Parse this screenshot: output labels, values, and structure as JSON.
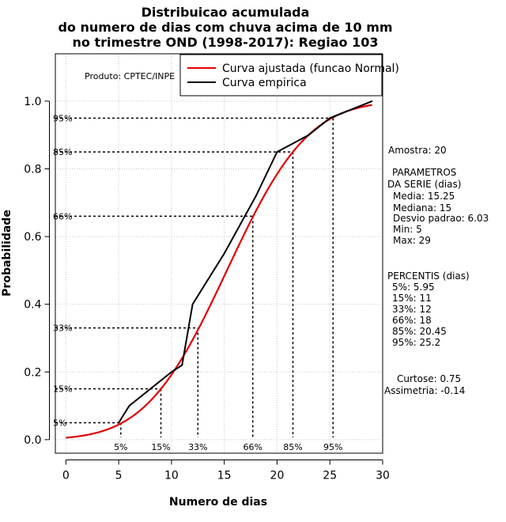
{
  "chart_data": {
    "type": "line",
    "title": [
      "Distribuicao acumulada",
      "do numero de dias com chuva acima de 10 mm",
      "no trimestre OND (1998-2017): Regiao 103"
    ],
    "xlabel": "Numero de dias",
    "ylabel": "Probabilidade",
    "xlim": [
      -1,
      30
    ],
    "ylim": [
      -0.04,
      1.14
    ],
    "xticks": [
      0,
      5,
      10,
      15,
      20,
      25,
      30
    ],
    "yticks": [
      0.0,
      0.2,
      0.4,
      0.6,
      0.8,
      1.0
    ],
    "ytick_labels": [
      "0.0",
      "0.2",
      "0.4",
      "0.6",
      "0.8",
      "1.0"
    ],
    "grid": true,
    "product_label": "Produto: CPTEC/INPE",
    "legend": [
      {
        "label": "Curva ajustada (funcao Normal)",
        "color": "#e00000"
      },
      {
        "label": "Curva empirica",
        "color": "#000000"
      }
    ],
    "normal": {
      "mean": 15.25,
      "sd": 6.03,
      "x_from": 0,
      "x_to": 29
    },
    "series": [
      {
        "name": "Curva empirica",
        "x": [
          5,
          6,
          10,
          11,
          12,
          15,
          18,
          20,
          23,
          25,
          29
        ],
        "y": [
          0.05,
          0.1,
          0.2,
          0.22,
          0.4,
          0.55,
          0.72,
          0.85,
          0.9,
          0.95,
          1.0
        ]
      }
    ],
    "percentiles": [
      {
        "label": "5%",
        "x": 5.95,
        "y": 0.05
      },
      {
        "label": "15%",
        "x": 11,
        "y": 0.15
      },
      {
        "label": "33%",
        "x": 12,
        "y": 0.33
      },
      {
        "label": "66%",
        "x": 18,
        "y": 0.66
      },
      {
        "label": "85%",
        "x": 20.45,
        "y": 0.85
      },
      {
        "label": "95%",
        "x": 25.2,
        "y": 0.95
      }
    ],
    "percentile_markers": [
      {
        "label": "5%",
        "x": 5.2,
        "y": 0.05
      },
      {
        "label": "15%",
        "x": 9.0,
        "y": 0.15
      },
      {
        "label": "33%",
        "x": 12.5,
        "y": 0.33
      },
      {
        "label": "66%",
        "x": 17.7,
        "y": 0.66
      },
      {
        "label": "85%",
        "x": 21.5,
        "y": 0.85
      },
      {
        "label": "95%",
        "x": 25.3,
        "y": 0.95
      }
    ]
  },
  "stats": {
    "amostra": "Amostra: 20",
    "param_title_1": "PARAMETROS",
    "param_title_2": "DA SERIE (dias)",
    "media": "Media: 15.25",
    "mediana": "Mediana: 15",
    "desvio": "Desvio padrao: 6.03",
    "min": "Min: 5",
    "max": "Max: 29",
    "perc_title": "PERCENTIS (dias)",
    "p5": "5%: 5.95",
    "p15": "15%: 11",
    "p33": "33%: 12",
    "p66": "66%: 18",
    "p85": "85%: 20.45",
    "p95": "95%: 25.2",
    "curtose": "Curtose: 0.75",
    "assimetria": "Assimetria: -0.14"
  }
}
